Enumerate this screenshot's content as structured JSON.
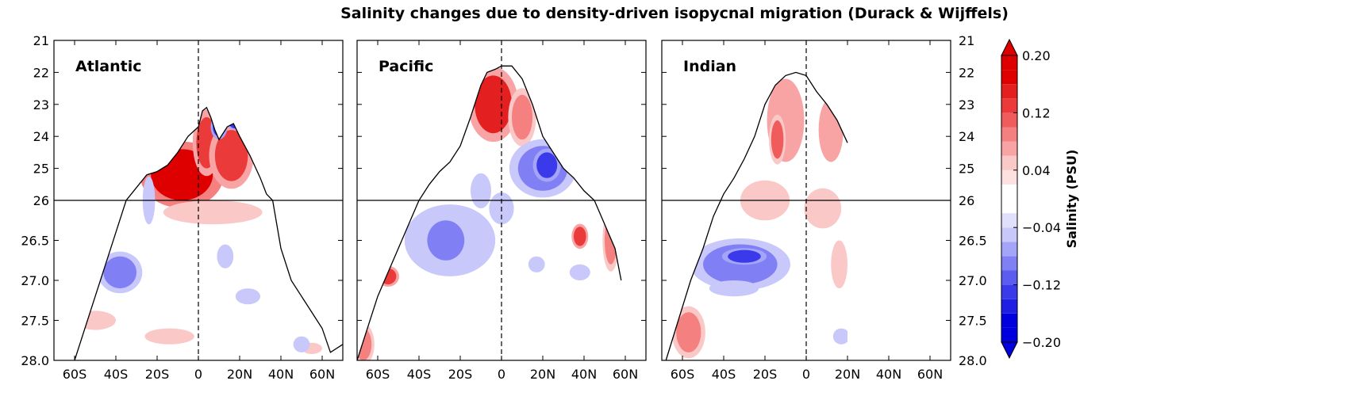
{
  "chart_data": {
    "type": "contour",
    "title": "Salinity changes due to density-driven isopycnal migration (Durack & Wijffels)",
    "x_tick_labels": [
      "60S",
      "40S",
      "20S",
      "0",
      "20N",
      "40N",
      "60N"
    ],
    "x_tick_values": [
      -60,
      -40,
      -20,
      0,
      20,
      40,
      60
    ],
    "xlim": [
      -70,
      70
    ],
    "y_axis": {
      "upper": {
        "range": [
          21,
          26
        ],
        "ticks": [
          21,
          22,
          23,
          24,
          25,
          26
        ],
        "tick_labels": [
          "21",
          "22",
          "23",
          "24",
          "25",
          "26"
        ]
      },
      "lower": {
        "range": [
          26,
          28
        ],
        "ticks": [
          26,
          26.5,
          27,
          27.5,
          28
        ],
        "tick_labels": [
          "26",
          "26.5",
          "27.0",
          "27.5",
          "28.0"
        ]
      },
      "split": 26,
      "inverted": true
    },
    "panels": [
      {
        "label": "Atlantic",
        "outline": [
          [
            -60,
            28
          ],
          [
            -55,
            27.6
          ],
          [
            -50,
            27.2
          ],
          [
            -45,
            26.8
          ],
          [
            -40,
            26.4
          ],
          [
            -35,
            26.0
          ],
          [
            -30,
            25.6
          ],
          [
            -25,
            25.2
          ],
          [
            -20,
            25.1
          ],
          [
            -15,
            24.9
          ],
          [
            -10,
            24.5
          ],
          [
            -5,
            24.0
          ],
          [
            0,
            23.7
          ],
          [
            2,
            23.2
          ],
          [
            4,
            23.1
          ],
          [
            6,
            23.4
          ],
          [
            8,
            23.8
          ],
          [
            10,
            24.1
          ],
          [
            14,
            23.7
          ],
          [
            17,
            23.6
          ],
          [
            20,
            24.0
          ],
          [
            25,
            24.6
          ],
          [
            30,
            25.3
          ],
          [
            33,
            25.8
          ],
          [
            36,
            26.0
          ],
          [
            40,
            26.6
          ],
          [
            45,
            27.0
          ],
          [
            50,
            27.2
          ],
          [
            55,
            27.4
          ],
          [
            60,
            27.6
          ],
          [
            64,
            27.9
          ],
          [
            70,
            27.8
          ]
        ],
        "features": [
          {
            "x": -8,
            "y": 25.2,
            "rx": 15,
            "ry": 0.8,
            "value": 0.16
          },
          {
            "x": 4,
            "y": 24.2,
            "rx": 5,
            "ry": 0.8,
            "value": 0.12
          },
          {
            "x": 16,
            "y": 24.6,
            "rx": 8,
            "ry": 0.8,
            "value": 0.12
          },
          {
            "x": 7,
            "y": 26.15,
            "rx": 24,
            "ry": 0.15,
            "value": 0.04
          },
          {
            "x": -38,
            "y": 26.9,
            "rx": 8,
            "ry": 0.2,
            "value": -0.08
          },
          {
            "x": -24,
            "y": 26.0,
            "rx": 3,
            "ry": 0.3,
            "value": -0.04
          },
          {
            "x": 13,
            "y": 26.7,
            "rx": 4,
            "ry": 0.15,
            "value": -0.04
          },
          {
            "x": 24,
            "y": 27.2,
            "rx": 6,
            "ry": 0.1,
            "value": -0.04
          },
          {
            "x": -50,
            "y": 27.5,
            "rx": 10,
            "ry": 0.12,
            "value": 0.04
          },
          {
            "x": -14,
            "y": 27.7,
            "rx": 12,
            "ry": 0.1,
            "value": 0.04
          },
          {
            "x": 10,
            "y": 23.7,
            "rx": 3,
            "ry": 0.3,
            "value": -0.12
          },
          {
            "x": 18,
            "y": 23.6,
            "rx": 3,
            "ry": 0.15,
            "value": -0.12
          },
          {
            "x": 55,
            "y": 27.85,
            "rx": 5,
            "ry": 0.07,
            "value": 0.04
          },
          {
            "x": 50,
            "y": 27.8,
            "rx": 4,
            "ry": 0.1,
            "value": -0.04
          }
        ]
      },
      {
        "label": "Pacific",
        "outline": [
          [
            -70,
            28
          ],
          [
            -65,
            27.6
          ],
          [
            -60,
            27.2
          ],
          [
            -55,
            26.9
          ],
          [
            -50,
            26.6
          ],
          [
            -45,
            26.3
          ],
          [
            -40,
            26.0
          ],
          [
            -35,
            25.5
          ],
          [
            -30,
            25.1
          ],
          [
            -25,
            24.8
          ],
          [
            -20,
            24.3
          ],
          [
            -15,
            23.4
          ],
          [
            -10,
            22.4
          ],
          [
            -7,
            22.0
          ],
          [
            -3,
            21.9
          ],
          [
            0,
            21.8
          ],
          [
            5,
            21.8
          ],
          [
            10,
            22.2
          ],
          [
            15,
            23.0
          ],
          [
            20,
            24.0
          ],
          [
            25,
            24.5
          ],
          [
            30,
            25.0
          ],
          [
            35,
            25.3
          ],
          [
            40,
            25.7
          ],
          [
            45,
            26.0
          ],
          [
            50,
            26.3
          ],
          [
            55,
            26.6
          ],
          [
            58,
            27.0
          ]
        ],
        "features": [
          {
            "x": -4,
            "y": 23.0,
            "rx": 9,
            "ry": 0.9,
            "value": 0.14
          },
          {
            "x": 10,
            "y": 23.4,
            "rx": 5,
            "ry": 0.7,
            "value": 0.08
          },
          {
            "x": 20,
            "y": 25.0,
            "rx": 12,
            "ry": 0.7,
            "value": -0.08
          },
          {
            "x": 22,
            "y": 24.9,
            "rx": 5,
            "ry": 0.4,
            "value": -0.12
          },
          {
            "x": -25,
            "y": 26.5,
            "rx": 22,
            "ry": 0.45,
            "value": -0.04
          },
          {
            "x": -27,
            "y": 26.5,
            "rx": 9,
            "ry": 0.25,
            "value": -0.08
          },
          {
            "x": -10,
            "y": 25.7,
            "rx": 5,
            "ry": 0.4,
            "value": -0.04
          },
          {
            "x": 0,
            "y": 26.1,
            "rx": 6,
            "ry": 0.2,
            "value": -0.04
          },
          {
            "x": -55,
            "y": 26.95,
            "rx": 4,
            "ry": 0.1,
            "value": 0.12
          },
          {
            "x": -67,
            "y": 27.8,
            "rx": 4,
            "ry": 0.2,
            "value": 0.08
          },
          {
            "x": 38,
            "y": 26.45,
            "rx": 3,
            "ry": 0.12,
            "value": 0.12
          },
          {
            "x": 53,
            "y": 26.5,
            "rx": 3,
            "ry": 0.3,
            "value": 0.08
          },
          {
            "x": 17,
            "y": 26.8,
            "rx": 4,
            "ry": 0.1,
            "value": -0.04
          },
          {
            "x": 38,
            "y": 26.9,
            "rx": 5,
            "ry": 0.1,
            "value": -0.04
          }
        ]
      },
      {
        "label": "Indian",
        "outline": [
          [
            -68,
            28
          ],
          [
            -62,
            27.5
          ],
          [
            -56,
            27.0
          ],
          [
            -50,
            26.6
          ],
          [
            -45,
            26.2
          ],
          [
            -40,
            25.8
          ],
          [
            -35,
            25.3
          ],
          [
            -30,
            24.7
          ],
          [
            -25,
            24.0
          ],
          [
            -20,
            23.0
          ],
          [
            -15,
            22.4
          ],
          [
            -10,
            22.1
          ],
          [
            -5,
            22.0
          ],
          [
            0,
            22.1
          ],
          [
            5,
            22.6
          ],
          [
            10,
            23.0
          ],
          [
            15,
            23.5
          ],
          [
            20,
            24.2
          ]
        ],
        "features": [
          {
            "x": -10,
            "y": 23.5,
            "rx": 9,
            "ry": 1.3,
            "value": 0.06
          },
          {
            "x": -14,
            "y": 24.1,
            "rx": 3,
            "ry": 0.6,
            "value": 0.1
          },
          {
            "x": 12,
            "y": 23.8,
            "rx": 6,
            "ry": 1.0,
            "value": 0.06
          },
          {
            "x": -20,
            "y": 26.0,
            "rx": 12,
            "ry": 0.25,
            "value": 0.04
          },
          {
            "x": 8,
            "y": 26.1,
            "rx": 9,
            "ry": 0.25,
            "value": 0.04
          },
          {
            "x": -32,
            "y": 26.8,
            "rx": 18,
            "ry": 0.25,
            "value": -0.08
          },
          {
            "x": -30,
            "y": 26.7,
            "rx": 8,
            "ry": 0.08,
            "value": -0.12
          },
          {
            "x": -35,
            "y": 27.1,
            "rx": 12,
            "ry": 0.1,
            "value": -0.04
          },
          {
            "x": -57,
            "y": 27.65,
            "rx": 6,
            "ry": 0.25,
            "value": 0.08
          },
          {
            "x": 17,
            "y": 27.7,
            "rx": 4,
            "ry": 0.1,
            "value": -0.04
          },
          {
            "x": 16,
            "y": 26.8,
            "rx": 4,
            "ry": 0.3,
            "value": 0.04
          }
        ]
      }
    ],
    "colorbar": {
      "label": "Salinity (PSU)",
      "levels": [
        -0.2,
        -0.18,
        -0.16,
        -0.14,
        -0.12,
        -0.1,
        -0.08,
        -0.06,
        -0.04,
        -0.02,
        0.02,
        0.04,
        0.06,
        0.08,
        0.1,
        0.12,
        0.14,
        0.16,
        0.18,
        0.2
      ],
      "ticks": [
        0.2,
        0.12,
        0.04,
        -0.04,
        -0.12,
        -0.2
      ],
      "tick_labels": [
        "0.20",
        "0.12",
        "0.04",
        "−0.04",
        "−0.12",
        "−0.20"
      ],
      "extend": "both",
      "colors": {
        "positive": [
          "#fde0e0",
          "#fbc8c8",
          "#f8a4a4",
          "#f48080",
          "#f05c5c",
          "#ea3a3a",
          "#e41f1f",
          "#de0000"
        ],
        "negative": [
          "#e0e0fd",
          "#c8c8fb",
          "#a4a4f8",
          "#8080f4",
          "#5c5cf0",
          "#3a3aea",
          "#1f1fe4",
          "#0000de"
        ],
        "neutral": "#ffffff"
      }
    }
  }
}
